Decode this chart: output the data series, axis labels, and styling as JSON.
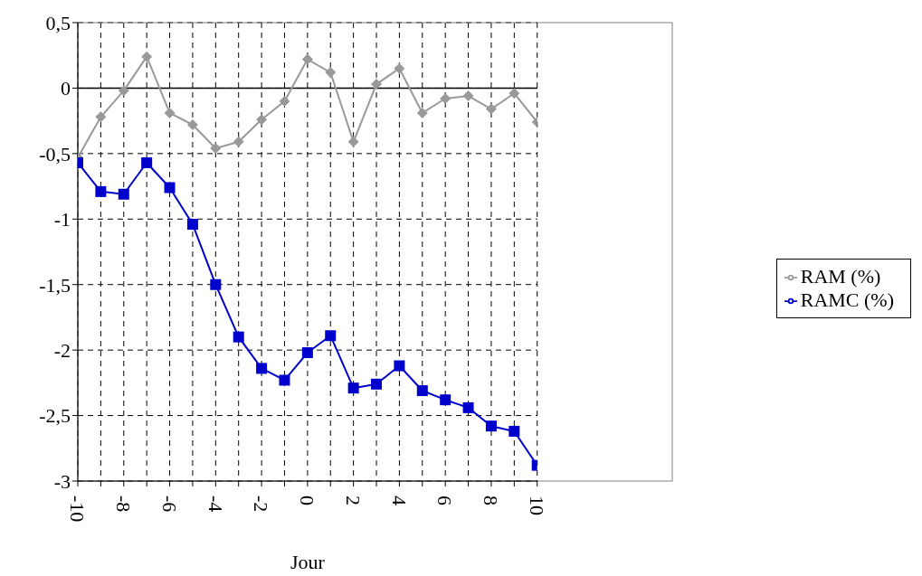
{
  "chart_data": {
    "type": "line",
    "xlabel": "Jour",
    "x": [
      -10,
      -9,
      -8,
      -7,
      -6,
      -5,
      -4,
      -3,
      -2,
      -1,
      0,
      1,
      2,
      3,
      4,
      5,
      6,
      7,
      8,
      9,
      10
    ],
    "series": [
      {
        "name": "RAM (%)",
        "color": "#999999",
        "marker": "diamond",
        "values": [
          -0.53,
          -0.22,
          -0.02,
          0.24,
          -0.19,
          -0.28,
          -0.46,
          -0.41,
          -0.24,
          -0.1,
          0.22,
          0.12,
          -0.41,
          0.03,
          0.15,
          -0.19,
          -0.08,
          -0.06,
          -0.16,
          -0.04,
          -0.26
        ]
      },
      {
        "name": "RAMC (%)",
        "color": "#0000cc",
        "marker": "square",
        "values": [
          -0.57,
          -0.79,
          -0.81,
          -0.57,
          -0.76,
          -1.04,
          -1.5,
          -1.9,
          -2.14,
          -2.23,
          -2.02,
          -1.89,
          -2.29,
          -2.26,
          -2.12,
          -2.31,
          -2.38,
          -2.44,
          -2.58,
          -2.62,
          -2.88
        ]
      }
    ],
    "xlim": [
      -10,
      10
    ],
    "xticks": [
      -10,
      {
        "value": -9,
        "label": null
      },
      -8,
      {
        "value": -7,
        "label": null
      },
      -6,
      {
        "value": -5,
        "label": null
      },
      -4,
      {
        "value": -3,
        "label": null
      },
      -2,
      {
        "value": -1,
        "label": null
      },
      0,
      {
        "value": 1,
        "label": null
      },
      2,
      {
        "value": 3,
        "label": null
      },
      4,
      {
        "value": 5,
        "label": null
      },
      6,
      {
        "value": 7,
        "label": null
      },
      8,
      {
        "value": 9,
        "label": null
      },
      10
    ],
    "ylim": [
      -3,
      0.5
    ],
    "yticks": [
      {
        "value": 0.5,
        "label": "0,5"
      },
      0,
      {
        "value": -0.5,
        "label": "-0,5"
      },
      -1,
      {
        "value": -1.5,
        "label": "-1,5"
      },
      -2,
      {
        "value": -2.5,
        "label": "-2,5"
      },
      -3
    ],
    "ref_lines": [
      {
        "axis": "y",
        "value": 0,
        "color": "#000000"
      }
    ],
    "grid": true,
    "legend": "right",
    "line_style": "solid"
  }
}
